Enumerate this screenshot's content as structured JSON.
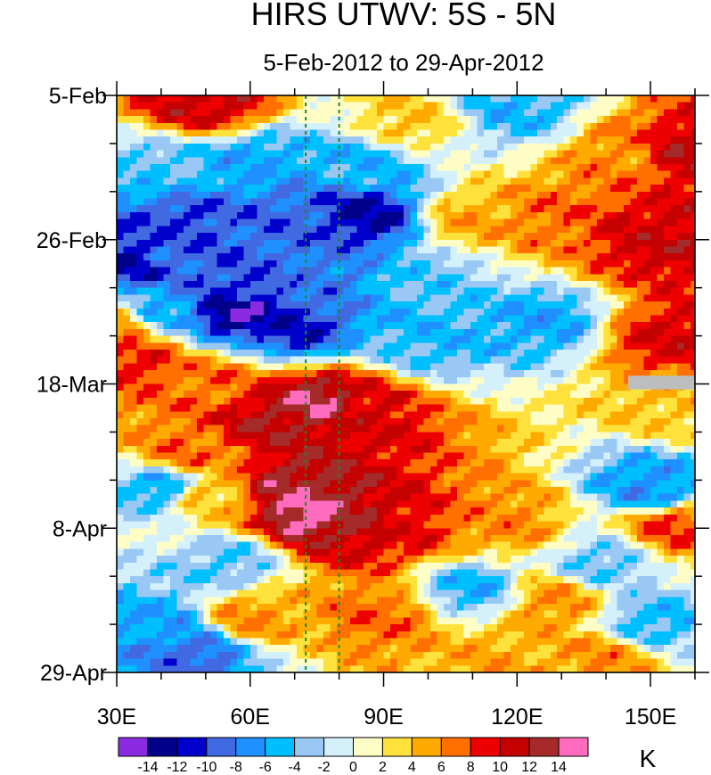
{
  "chart_data": {
    "type": "heatmap",
    "title": "HIRS UTWV: 5S - 5N",
    "subtitle": "5-Feb-2012 to 29-Apr-2012",
    "xlabel": "",
    "ylabel": "",
    "x_range": [
      30,
      160
    ],
    "x_units": "degrees East longitude",
    "x_ticks": [
      {
        "value": 30,
        "label": "30E"
      },
      {
        "value": 60,
        "label": "60E"
      },
      {
        "value": 90,
        "label": "90E"
      },
      {
        "value": 120,
        "label": "120E"
      },
      {
        "value": 150,
        "label": "150E"
      }
    ],
    "y_range_days": [
      0,
      84
    ],
    "y_ticks": [
      {
        "day": 0,
        "label": "5-Feb"
      },
      {
        "day": 21,
        "label": "26-Feb"
      },
      {
        "day": 42,
        "label": "18-Mar"
      },
      {
        "day": 63,
        "label": "8-Apr"
      },
      {
        "day": 84,
        "label": "29-Apr"
      }
    ],
    "reference_lines_lon": [
      72.5,
      80
    ],
    "colorbar": {
      "unit_label": "K",
      "levels": [
        "-14",
        "-12",
        "-10",
        "-8",
        "-6",
        "-4",
        "-2",
        "0",
        "2",
        "4",
        "6",
        "8",
        "10",
        "12",
        "14"
      ],
      "colors": [
        "#8a2be2",
        "#00008b",
        "#0000cd",
        "#4169e1",
        "#1e90ff",
        "#00bfff",
        "#9ac8f5",
        "#d4f1fb",
        "#fffdc6",
        "#ffe13c",
        "#ffaa00",
        "#ff7000",
        "#ee0000",
        "#c40000",
        "#a52a2a",
        "#ff6cbe"
      ]
    },
    "missing_data": {
      "lon_range": [
        145,
        160
      ],
      "day_range": [
        40.8,
        42.8
      ],
      "color": "#bdbdbd"
    },
    "anomaly_features_K": [
      {
        "lon": 50,
        "day": 1.2,
        "value": 11
      },
      {
        "lon": 95,
        "day": 4,
        "value": 4
      },
      {
        "lon": 120,
        "day": 2,
        "value": -5
      },
      {
        "lon": 40,
        "day": 11,
        "value": -4
      },
      {
        "lon": 60,
        "day": 10,
        "value": -6
      },
      {
        "lon": 85,
        "day": 10,
        "value": -5
      },
      {
        "lon": 157,
        "day": 8.5,
        "value": 11
      },
      {
        "lon": 145,
        "day": 9,
        "value": 6
      },
      {
        "lon": 45,
        "day": 18,
        "value": -10
      },
      {
        "lon": 68,
        "day": 18,
        "value": -9
      },
      {
        "lon": 86,
        "day": 17.5,
        "value": -12
      },
      {
        "lon": 35,
        "day": 24,
        "value": -12
      },
      {
        "lon": 40,
        "day": 23.5,
        "value": -9
      },
      {
        "lon": 55,
        "day": 29,
        "value": -10
      },
      {
        "lon": 75,
        "day": 27,
        "value": -8
      },
      {
        "lon": 100,
        "day": 27,
        "value": -4
      },
      {
        "lon": 128,
        "day": 18,
        "value": 7
      },
      {
        "lon": 110,
        "day": 18,
        "value": 5
      },
      {
        "lon": 150,
        "day": 20,
        "value": 10
      },
      {
        "lon": 153,
        "day": 21,
        "value": 11
      },
      {
        "lon": 57,
        "day": 31.5,
        "value": -14
      },
      {
        "lon": 70,
        "day": 34,
        "value": -11
      },
      {
        "lon": 40,
        "day": 31,
        "value": -6
      },
      {
        "lon": 100,
        "day": 36,
        "value": -5
      },
      {
        "lon": 125,
        "day": 33,
        "value": -6
      },
      {
        "lon": 155,
        "day": 35.5,
        "value": 10
      },
      {
        "lon": 30,
        "day": 33.5,
        "value": 6
      },
      {
        "lon": 35,
        "day": 38.5,
        "value": 9
      },
      {
        "lon": 52,
        "day": 42,
        "value": 7
      },
      {
        "lon": 75,
        "day": 44.5,
        "value": 14
      },
      {
        "lon": 65,
        "day": 47,
        "value": 12
      },
      {
        "lon": 85,
        "day": 46,
        "value": 10
      },
      {
        "lon": 45,
        "day": 52,
        "value": 7
      },
      {
        "lon": 70,
        "day": 57,
        "value": 13
      },
      {
        "lon": 73,
        "day": 61,
        "value": 15
      },
      {
        "lon": 86,
        "day": 62.5,
        "value": 12
      },
      {
        "lon": 93,
        "day": 63,
        "value": 9
      },
      {
        "lon": 40,
        "day": 57,
        "value": -6
      },
      {
        "lon": 50,
        "day": 58,
        "value": 4
      },
      {
        "lon": 118,
        "day": 62,
        "value": 6
      },
      {
        "lon": 150,
        "day": 57,
        "value": -7
      },
      {
        "lon": 155,
        "day": 63,
        "value": 8
      },
      {
        "lon": 155,
        "day": 45,
        "value": 4
      },
      {
        "lon": 110,
        "day": 72,
        "value": -5
      },
      {
        "lon": 128,
        "day": 74,
        "value": 6
      },
      {
        "lon": 40,
        "day": 77,
        "value": -6
      },
      {
        "lon": 48,
        "day": 81,
        "value": -9
      },
      {
        "lon": 60,
        "day": 76,
        "value": 6
      },
      {
        "lon": 90,
        "day": 76,
        "value": 7
      },
      {
        "lon": 115,
        "day": 82,
        "value": 5
      },
      {
        "lon": 140,
        "day": 82,
        "value": 6
      },
      {
        "lon": 55,
        "day": 68,
        "value": -4
      },
      {
        "lon": 140,
        "day": 68,
        "value": -4
      },
      {
        "lon": 150,
        "day": 77,
        "value": -5
      }
    ]
  }
}
